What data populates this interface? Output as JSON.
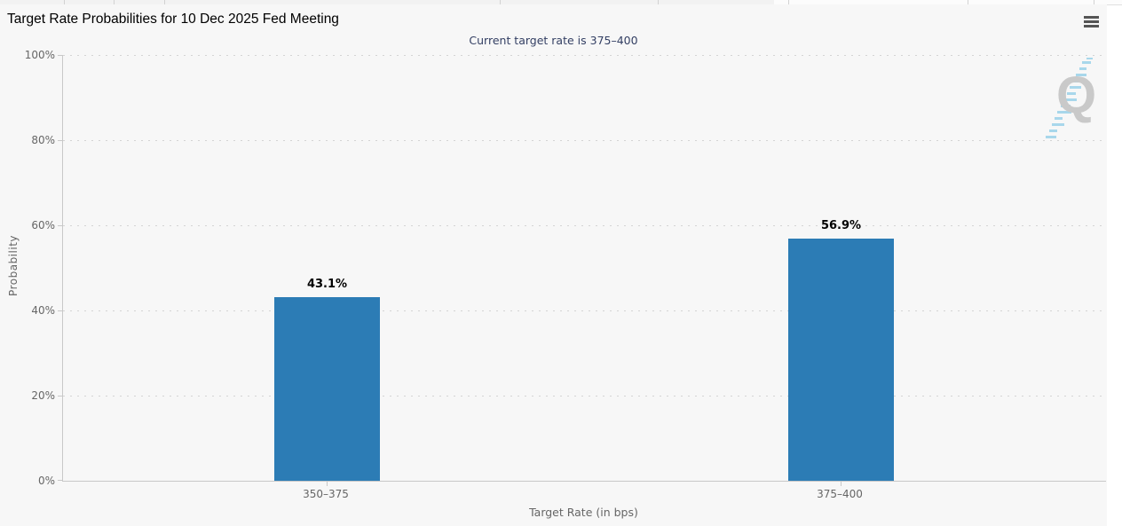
{
  "header": {
    "title": "Target Rate Probabilities for 10 Dec 2025 Fed Meeting",
    "menu_icon": "hamburger-menu-icon"
  },
  "chart": {
    "subtitle": "Current target rate is 375–400",
    "subtitle_color": "#333f63",
    "background": "#f7f7f7",
    "bar_color": "#2c7cb5",
    "axis_text_color": "#666666"
  },
  "chart_data": {
    "type": "bar",
    "title": "Target Rate Probabilities for 10 Dec 2025 Fed Meeting",
    "subtitle": "Current target rate is 375–400",
    "categories": [
      "350–375",
      "375–400"
    ],
    "values": [
      43.1,
      56.9
    ],
    "data_labels": [
      "43.1%",
      "56.9%"
    ],
    "xlabel": "Target Rate (in bps)",
    "ylabel": "Probability",
    "ylim": [
      0,
      100
    ],
    "yticks": [
      "0%",
      "20%",
      "40%",
      "60%",
      "80%",
      "100%"
    ],
    "grid": "dotted horizontal gridlines",
    "legend": "none",
    "bar_color": "#2c7cb5"
  },
  "watermark": {
    "letter": "Q"
  }
}
